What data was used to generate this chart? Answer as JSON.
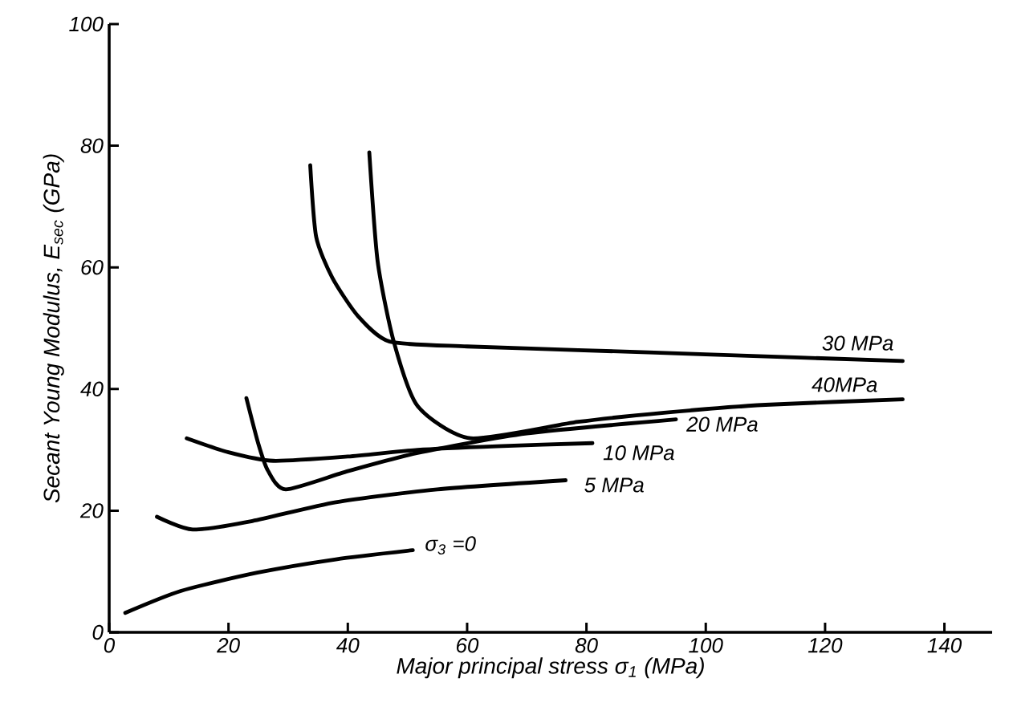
{
  "chart_data": {
    "type": "line",
    "xlabel": "Major principal stress  σ$_{1}$ (MPa)",
    "ylabel": "Secant Young Modulus, E$_{sec}$ (GPa)",
    "xlim": [
      0,
      148
    ],
    "ylim": [
      0,
      100
    ],
    "xticks": [
      0,
      20,
      40,
      60,
      80,
      100,
      120,
      140
    ],
    "yticks": [
      0,
      20,
      40,
      60,
      80,
      100
    ],
    "grid": false,
    "legend": false,
    "marker": "none",
    "line_style": "solid",
    "series": [
      {
        "name": "σ$_{3}$ =0",
        "color": "#000000",
        "x": [
          2.7,
          12,
          24.8,
          38,
          50.9
        ],
        "values": [
          3.2,
          6.8,
          9.8,
          12,
          13.5
        ]
      },
      {
        "name": "5 MPa",
        "color": "#000000",
        "x": [
          8,
          14,
          24,
          38,
          55,
          76.5
        ],
        "values": [
          19,
          16.9,
          18.3,
          21.4,
          23.5,
          25
        ]
      },
      {
        "name": "10 MPa",
        "color": "#000000",
        "x": [
          13,
          20,
          27.5,
          40,
          51.7,
          65,
          81
        ],
        "values": [
          31.9,
          29.6,
          28.2,
          28.9,
          30,
          30.6,
          31.1
        ]
      },
      {
        "name": "20 MPa",
        "color": "#000000",
        "x": [
          23,
          25,
          26.6,
          29.6,
          40,
          51.7,
          70,
          95
        ],
        "values": [
          38.5,
          31,
          26.6,
          23.5,
          26.5,
          29.5,
          32.7,
          35
        ]
      },
      {
        "name": "30 MPa",
        "color": "#000000",
        "x": [
          33.7,
          34.7,
          37.4,
          41.7,
          47,
          60,
          78.6,
          100,
          133
        ],
        "values": [
          76.8,
          65,
          58.3,
          52,
          47.8,
          47,
          46.4,
          45.7,
          44.6
        ]
      },
      {
        "name": "40MPa",
        "color": "#000000",
        "x": [
          43.6,
          45,
          47.7,
          51.7,
          60.6,
          78.6,
          93,
          110,
          133
        ],
        "values": [
          78.9,
          61,
          47.8,
          37.2,
          31.9,
          34.6,
          36.1,
          37.4,
          38.3
        ]
      }
    ]
  }
}
